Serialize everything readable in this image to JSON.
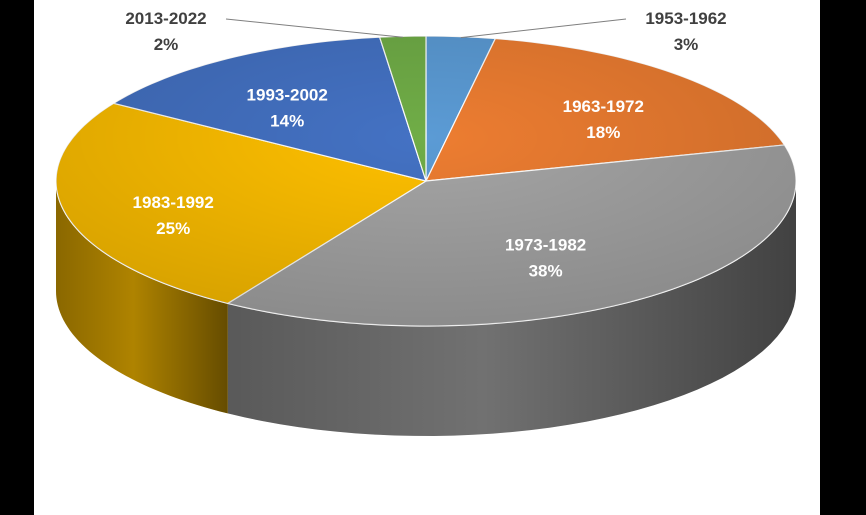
{
  "chart_data": {
    "type": "pie",
    "style": "3d",
    "title": "",
    "categories": [
      "1953-1962",
      "1963-1972",
      "1973-1982",
      "1983-1992",
      "1993-2002",
      "2013-2022"
    ],
    "values": [
      3,
      18,
      38,
      25,
      14,
      2
    ],
    "value_labels": [
      "3%",
      "18%",
      "38%",
      "25%",
      "14%",
      "2%"
    ],
    "colors": [
      "#5B9BD5",
      "#ED7D31",
      "#A5A5A5",
      "#FFC000",
      "#4472C4",
      "#70AD47"
    ],
    "legend": "none",
    "data_labels": true
  }
}
